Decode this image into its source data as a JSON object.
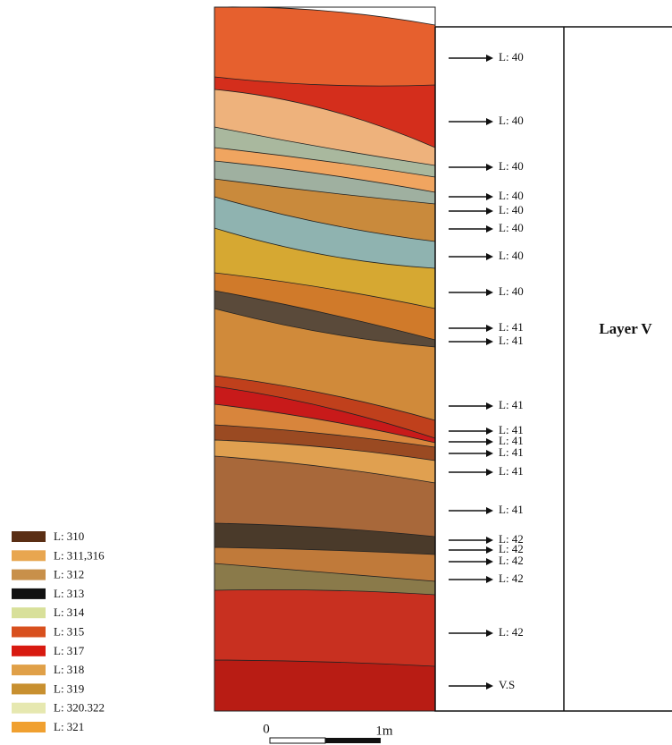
{
  "legend": [
    "L: 310",
    "L: 311,316",
    "L: 312",
    "L: 313",
    "L: 314",
    "L: 315",
    "L: 317",
    "L: 318",
    "L: 319",
    "L: 320.322",
    "L: 321"
  ],
  "column_labels": [
    "L: 40",
    "L: 40",
    "L: 40",
    "L: 40",
    "L: 40",
    "L: 40",
    "L: 40",
    "L: 40",
    "L: 41",
    "L: 41",
    "L: 41",
    "L: 41",
    "L: 41",
    "L: 41",
    "L: 41",
    "L: 41",
    "L: 42",
    "L: 42",
    "L: 42",
    "L: 42",
    "L: 42",
    "V.S"
  ],
  "layer": "Layer V",
  "scale": {
    "start": "0",
    "end": "1m"
  }
}
